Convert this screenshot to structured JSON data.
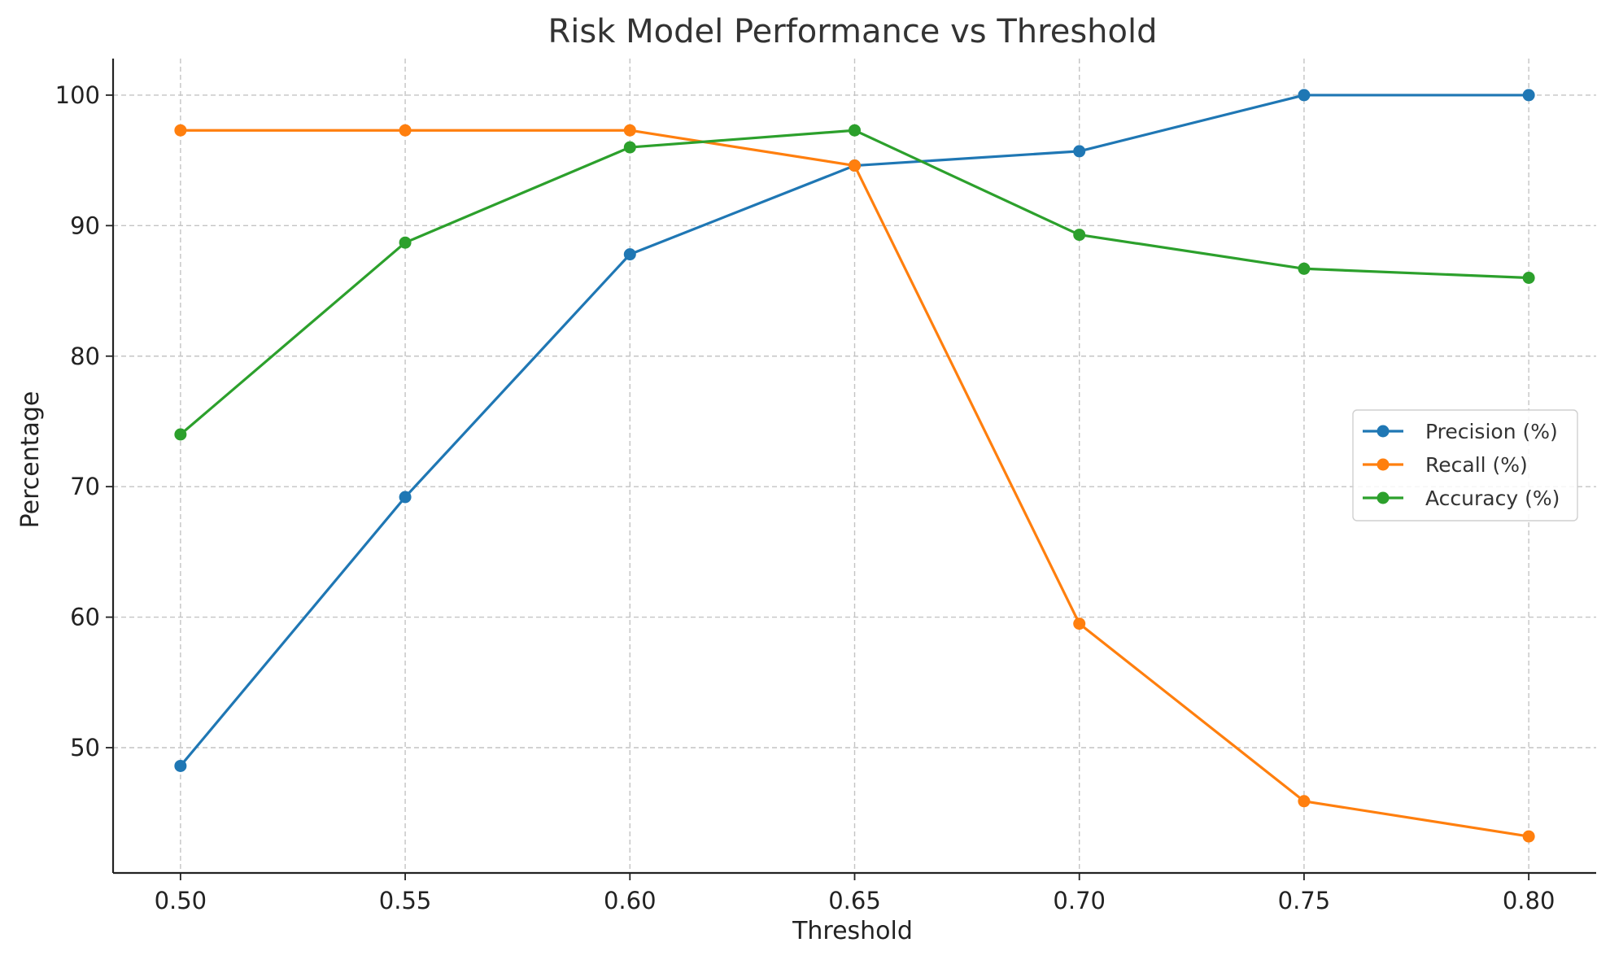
{
  "chart_data": {
    "type": "line",
    "title": "Risk Model Performance vs Threshold",
    "xlabel": "Threshold",
    "ylabel": "Percentage",
    "x": [
      0.5,
      0.55,
      0.6,
      0.65,
      0.7,
      0.75,
      0.8
    ],
    "x_tick_labels": [
      "0.50",
      "0.55",
      "0.60",
      "0.65",
      "0.70",
      "0.75",
      "0.80"
    ],
    "xlim": [
      0.485,
      0.815
    ],
    "y_ticks": [
      50,
      60,
      70,
      80,
      90,
      100
    ],
    "y_tick_labels": [
      "50",
      "60",
      "70",
      "80",
      "90",
      "100"
    ],
    "ylim": [
      40.4,
      102.8
    ],
    "grid": true,
    "legend_position": "center-right",
    "series": [
      {
        "name": "Precision (%)",
        "color": "#1f77b4",
        "values": [
          48.6,
          69.2,
          87.8,
          94.6,
          95.7,
          100.0,
          100.0
        ]
      },
      {
        "name": "Recall (%)",
        "color": "#ff7f0e",
        "values": [
          97.3,
          97.3,
          97.3,
          94.6,
          59.5,
          45.9,
          43.2
        ]
      },
      {
        "name": "Accuracy (%)",
        "color": "#2ca02c",
        "values": [
          74.0,
          88.7,
          96.0,
          97.3,
          89.3,
          86.7,
          86.0
        ]
      }
    ]
  }
}
